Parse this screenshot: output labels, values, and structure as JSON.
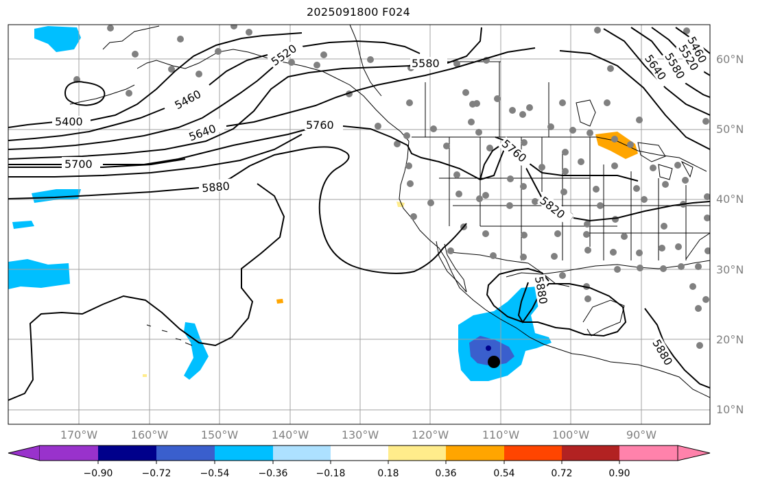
{
  "title": "2025091800 F024",
  "lat_labels": [
    "60°N",
    "50°N",
    "40°N",
    "30°N",
    "20°N",
    "10°N"
  ],
  "lon_labels": [
    "170°W",
    "160°W",
    "150°W",
    "140°W",
    "130°W",
    "120°W",
    "110°W",
    "100°W",
    "90°W"
  ],
  "contour_labels": [
    "5400",
    "5460",
    "5520",
    "5580",
    "5640",
    "5700",
    "5760",
    "5820",
    "5880",
    "5760",
    "5880",
    "5880",
    "5640",
    "5580",
    "5520",
    "5460"
  ],
  "colorbar": {
    "ticks": [
      "−0.90",
      "−0.72",
      "−0.54",
      "−0.36",
      "−0.18",
      "0.18",
      "0.36",
      "0.54",
      "0.72",
      "0.90"
    ],
    "colors": [
      "#9932CC",
      "#00008B",
      "#3A5FCD",
      "#00BFFF",
      "#ADE1FF",
      "#FFFFFF",
      "#FFEC8B",
      "#FFA500",
      "#FF4500",
      "#B22222",
      "#FF82AB"
    ]
  },
  "colors": {
    "stations": "#808080",
    "contours": "#000000",
    "grid": "#a0a0a0"
  }
}
